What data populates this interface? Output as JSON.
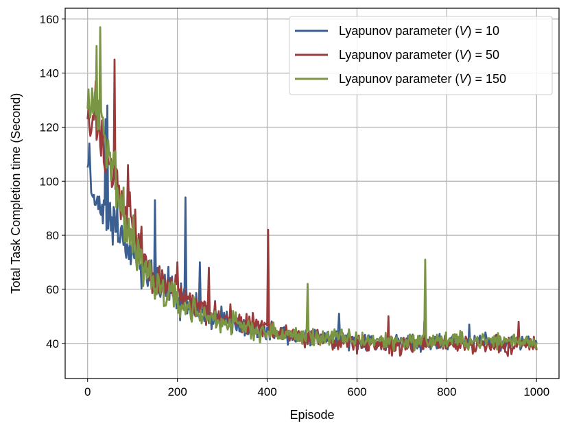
{
  "chart_data": {
    "type": "line",
    "xlabel": "Episode",
    "ylabel": "Total Task Completion time (Second)",
    "xlim": [
      -50,
      1050
    ],
    "ylim": [
      27,
      164
    ],
    "xticks": [
      0,
      200,
      400,
      600,
      800,
      1000
    ],
    "yticks": [
      40,
      60,
      80,
      100,
      120,
      140,
      160
    ],
    "grid": true,
    "legend_position": "top-right",
    "series": [
      {
        "name": "Lyapunov parameter (V) = 10",
        "legend_prefix": "Lyapunov parameter (",
        "legend_var": "V",
        "legend_suffix": ") = 10",
        "color": "#3b5f91",
        "keypoints": [
          [
            0,
            100
          ],
          [
            20,
            93
          ],
          [
            40,
            88
          ],
          [
            60,
            84
          ],
          [
            80,
            80
          ],
          [
            100,
            72
          ],
          [
            140,
            65
          ],
          [
            200,
            57
          ],
          [
            250,
            52
          ],
          [
            300,
            49
          ],
          [
            350,
            46
          ],
          [
            400,
            44
          ],
          [
            450,
            43
          ],
          [
            500,
            42
          ],
          [
            550,
            41.5
          ],
          [
            600,
            41
          ],
          [
            650,
            40.5
          ],
          [
            700,
            40.5
          ],
          [
            750,
            40.5
          ],
          [
            800,
            40.5
          ],
          [
            850,
            40.5
          ],
          [
            900,
            40.5
          ],
          [
            950,
            40.5
          ],
          [
            1000,
            40.5
          ]
        ],
        "noise": [
          [
            0,
            8
          ],
          [
            100,
            7
          ],
          [
            200,
            5
          ],
          [
            300,
            3.5
          ],
          [
            450,
            2.8
          ],
          [
            1000,
            2.5
          ]
        ],
        "spikes": [
          [
            4,
            114
          ],
          [
            40,
            123
          ],
          [
            44,
            128
          ],
          [
            150,
            93
          ],
          [
            155,
            80
          ],
          [
            218,
            94
          ],
          [
            235,
            80
          ],
          [
            250,
            70
          ],
          [
            525,
            53
          ],
          [
            560,
            51
          ],
          [
            850,
            47
          ],
          [
            975,
            47
          ]
        ]
      },
      {
        "name": "Lyapunov parameter (V) = 50",
        "legend_prefix": "Lyapunov parameter (",
        "legend_var": "V",
        "legend_suffix": ") = 50",
        "color": "#9b3a3a",
        "keypoints": [
          [
            0,
            125
          ],
          [
            20,
            118
          ],
          [
            40,
            110
          ],
          [
            60,
            102
          ],
          [
            80,
            92
          ],
          [
            100,
            82
          ],
          [
            120,
            74
          ],
          [
            150,
            66
          ],
          [
            200,
            58
          ],
          [
            250,
            54
          ],
          [
            300,
            50
          ],
          [
            350,
            47
          ],
          [
            400,
            45
          ],
          [
            450,
            43.5
          ],
          [
            500,
            42
          ],
          [
            550,
            41
          ],
          [
            600,
            40
          ],
          [
            650,
            39.5
          ],
          [
            700,
            39.5
          ],
          [
            750,
            39.5
          ],
          [
            800,
            39.5
          ],
          [
            850,
            39.5
          ],
          [
            900,
            39.5
          ],
          [
            950,
            39.5
          ],
          [
            1000,
            39.5
          ]
        ],
        "noise": [
          [
            0,
            10
          ],
          [
            100,
            8
          ],
          [
            200,
            5
          ],
          [
            300,
            4
          ],
          [
            450,
            3
          ],
          [
            1000,
            2.8
          ]
        ],
        "spikes": [
          [
            18,
            137
          ],
          [
            60,
            145
          ],
          [
            75,
            113
          ],
          [
            90,
            106
          ],
          [
            200,
            70
          ],
          [
            270,
            68
          ],
          [
            305,
            62
          ],
          [
            402,
            82
          ],
          [
            455,
            56
          ],
          [
            670,
            50
          ],
          [
            750,
            48
          ],
          [
            960,
            48
          ]
        ]
      },
      {
        "name": "Lyapunov parameter (V) = 150",
        "legend_prefix": "Lyapunov parameter (",
        "legend_var": "V",
        "legend_suffix": ") = 150",
        "color": "#7a9544",
        "keypoints": [
          [
            0,
            132
          ],
          [
            20,
            125
          ],
          [
            40,
            115
          ],
          [
            60,
            100
          ],
          [
            80,
            88
          ],
          [
            100,
            78
          ],
          [
            120,
            70
          ],
          [
            150,
            62
          ],
          [
            200,
            55
          ],
          [
            250,
            51
          ],
          [
            300,
            48
          ],
          [
            350,
            46
          ],
          [
            400,
            44
          ],
          [
            450,
            43
          ],
          [
            500,
            42.5
          ],
          [
            550,
            42
          ],
          [
            600,
            41.5
          ],
          [
            650,
            41
          ],
          [
            700,
            41
          ],
          [
            750,
            41
          ],
          [
            800,
            41
          ],
          [
            850,
            41
          ],
          [
            900,
            41
          ],
          [
            950,
            41
          ],
          [
            1000,
            41
          ]
        ],
        "noise": [
          [
            0,
            10
          ],
          [
            100,
            8
          ],
          [
            200,
            5
          ],
          [
            300,
            3.5
          ],
          [
            450,
            3
          ],
          [
            1000,
            2.5
          ]
        ],
        "spikes": [
          [
            20,
            150
          ],
          [
            28,
            157
          ],
          [
            45,
            135
          ],
          [
            345,
            64
          ],
          [
            375,
            60
          ],
          [
            490,
            62
          ],
          [
            752,
            71
          ],
          [
            945,
            52
          ]
        ]
      }
    ]
  }
}
